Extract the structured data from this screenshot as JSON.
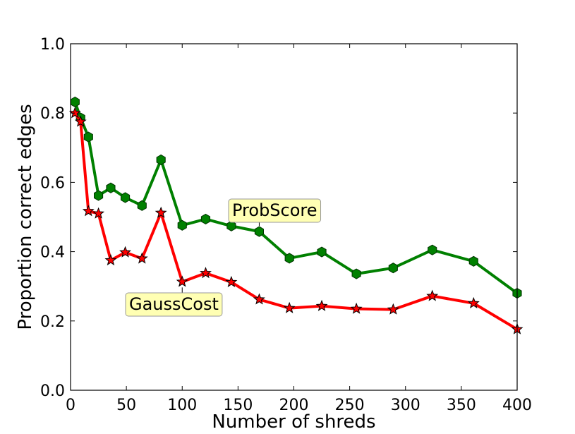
{
  "chart_data": {
    "type": "line",
    "xlabel": "Number of shreds",
    "ylabel": "Proportion correct edges",
    "xlim": [
      0,
      400
    ],
    "ylim": [
      0.0,
      1.0
    ],
    "xticks": [
      "0",
      "50",
      "100",
      "150",
      "200",
      "250",
      "300",
      "350",
      "400"
    ],
    "yticks": [
      "0.0",
      "0.2",
      "0.4",
      "0.6",
      "0.8",
      "1.0"
    ],
    "grid": false,
    "series": [
      {
        "name": "ProbScore",
        "color": "#008000",
        "marker": "hexagon",
        "x": [
          4,
          9,
          16,
          25,
          36,
          49,
          64,
          81,
          100,
          121,
          144,
          169,
          196,
          225,
          256,
          289,
          324,
          361,
          400
        ],
        "y": [
          0.832,
          0.786,
          0.731,
          0.562,
          0.584,
          0.556,
          0.533,
          0.665,
          0.476,
          0.494,
          0.474,
          0.458,
          0.381,
          0.399,
          0.336,
          0.353,
          0.405,
          0.372,
          0.28
        ]
      },
      {
        "name": "GaussCost",
        "color": "#ff0000",
        "marker": "star",
        "x": [
          4,
          9,
          16,
          25,
          36,
          49,
          64,
          81,
          100,
          121,
          144,
          169,
          196,
          225,
          256,
          289,
          324,
          361,
          400
        ],
        "y": [
          0.8,
          0.775,
          0.517,
          0.51,
          0.375,
          0.398,
          0.38,
          0.512,
          0.313,
          0.338,
          0.312,
          0.262,
          0.237,
          0.243,
          0.235,
          0.233,
          0.272,
          0.251,
          0.176
        ]
      }
    ],
    "annotations": [
      {
        "text": "ProbScore",
        "series": "ProbScore",
        "point_index": 11
      },
      {
        "text": "GaussCost",
        "series": "GaussCost",
        "point_index": 8
      }
    ],
    "annotation_style": {
      "fill": "#ffffb3",
      "stroke": "#999999"
    }
  }
}
